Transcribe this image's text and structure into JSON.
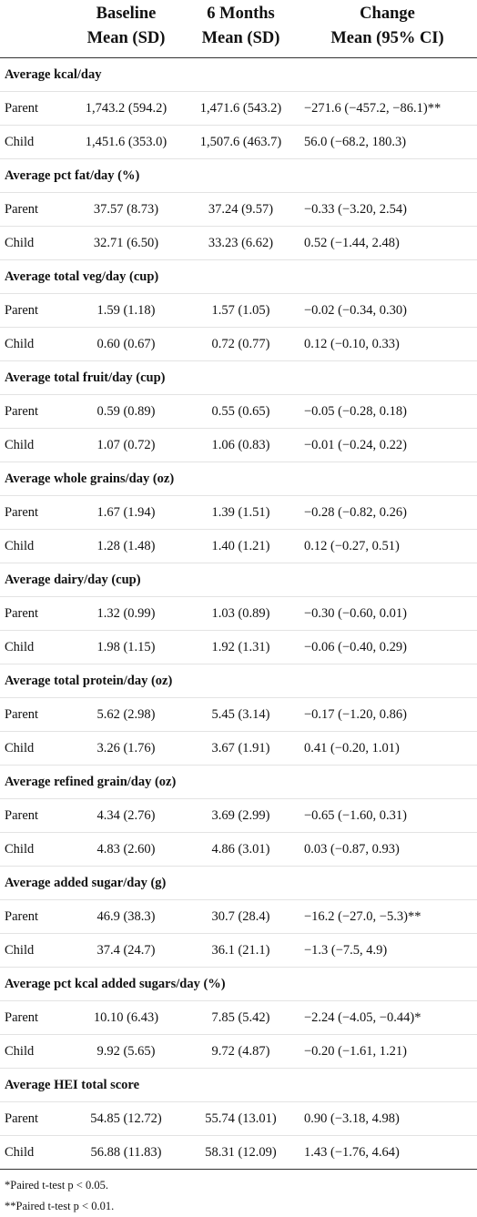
{
  "header": {
    "row1": [
      "Baseline",
      "6 Months",
      "Change"
    ],
    "row2": [
      "Mean (SD)",
      "Mean (SD)",
      "Mean (95% CI)"
    ]
  },
  "sections": [
    {
      "title": "Average kcal/day",
      "rows": [
        {
          "group": "Parent",
          "baseline": "1,743.2 (594.2)",
          "six_months": "1,471.6 (543.2)",
          "change": "−271.6 (−457.2, −86.1)**"
        },
        {
          "group": "Child",
          "baseline": "1,451.6 (353.0)",
          "six_months": "1,507.6 (463.7)",
          "change": "56.0 (−68.2, 180.3)"
        }
      ]
    },
    {
      "title": "Average pct fat/day (%)",
      "rows": [
        {
          "group": "Parent",
          "baseline": "37.57 (8.73)",
          "six_months": "37.24 (9.57)",
          "change": "−0.33 (−3.20, 2.54)"
        },
        {
          "group": "Child",
          "baseline": "32.71 (6.50)",
          "six_months": "33.23 (6.62)",
          "change": "0.52 (−1.44, 2.48)"
        }
      ]
    },
    {
      "title": "Average total veg/day (cup)",
      "rows": [
        {
          "group": "Parent",
          "baseline": "1.59 (1.18)",
          "six_months": "1.57 (1.05)",
          "change": "−0.02 (−0.34, 0.30)"
        },
        {
          "group": "Child",
          "baseline": "0.60 (0.67)",
          "six_months": "0.72 (0.77)",
          "change": "0.12 (−0.10, 0.33)"
        }
      ]
    },
    {
      "title": "Average total fruit/day (cup)",
      "rows": [
        {
          "group": "Parent",
          "baseline": "0.59 (0.89)",
          "six_months": "0.55 (0.65)",
          "change": "−0.05 (−0.28, 0.18)"
        },
        {
          "group": "Child",
          "baseline": "1.07 (0.72)",
          "six_months": "1.06 (0.83)",
          "change": "−0.01 (−0.24, 0.22)"
        }
      ]
    },
    {
      "title": "Average whole grains/day (oz)",
      "rows": [
        {
          "group": "Parent",
          "baseline": "1.67 (1.94)",
          "six_months": "1.39 (1.51)",
          "change": "−0.28 (−0.82, 0.26)"
        },
        {
          "group": "Child",
          "baseline": "1.28 (1.48)",
          "six_months": "1.40 (1.21)",
          "change": "0.12 (−0.27, 0.51)"
        }
      ]
    },
    {
      "title": "Average dairy/day (cup)",
      "rows": [
        {
          "group": "Parent",
          "baseline": "1.32 (0.99)",
          "six_months": "1.03 (0.89)",
          "change": "−0.30 (−0.60, 0.01)"
        },
        {
          "group": "Child",
          "baseline": "1.98 (1.15)",
          "six_months": "1.92 (1.31)",
          "change": "−0.06 (−0.40, 0.29)"
        }
      ]
    },
    {
      "title": "Average total protein/day (oz)",
      "rows": [
        {
          "group": "Parent",
          "baseline": "5.62 (2.98)",
          "six_months": "5.45 (3.14)",
          "change": "−0.17 (−1.20, 0.86)"
        },
        {
          "group": "Child",
          "baseline": "3.26 (1.76)",
          "six_months": "3.67 (1.91)",
          "change": "0.41 (−0.20, 1.01)"
        }
      ]
    },
    {
      "title": "Average refined grain/day (oz)",
      "rows": [
        {
          "group": "Parent",
          "baseline": "4.34 (2.76)",
          "six_months": "3.69 (2.99)",
          "change": "−0.65 (−1.60, 0.31)"
        },
        {
          "group": "Child",
          "baseline": "4.83 (2.60)",
          "six_months": "4.86 (3.01)",
          "change": "0.03 (−0.87, 0.93)"
        }
      ]
    },
    {
      "title": "Average added sugar/day (g)",
      "rows": [
        {
          "group": "Parent",
          "baseline": "46.9 (38.3)",
          "six_months": "30.7 (28.4)",
          "change": "−16.2 (−27.0, −5.3)**"
        },
        {
          "group": "Child",
          "baseline": "37.4 (24.7)",
          "six_months": "36.1 (21.1)",
          "change": "−1.3 (−7.5, 4.9)"
        }
      ]
    },
    {
      "title": "Average pct kcal added sugars/day (%)",
      "rows": [
        {
          "group": "Parent",
          "baseline": "10.10 (6.43)",
          "six_months": "7.85 (5.42)",
          "change": "−2.24 (−4.05, −0.44)*"
        },
        {
          "group": "Child",
          "baseline": "9.92 (5.65)",
          "six_months": "9.72 (4.87)",
          "change": "−0.20 (−1.61, 1.21)"
        }
      ]
    },
    {
      "title": "Average HEI total score",
      "rows": [
        {
          "group": "Parent",
          "baseline": "54.85 (12.72)",
          "six_months": "55.74 (13.01)",
          "change": "0.90 (−3.18, 4.98)"
        },
        {
          "group": "Child",
          "baseline": "56.88 (11.83)",
          "six_months": "58.31 (12.09)",
          "change": "1.43 (−1.76, 4.64)"
        }
      ]
    }
  ],
  "footnotes": [
    "*Paired t-test p < 0.05.",
    "**Paired t-test p < 0.01."
  ]
}
